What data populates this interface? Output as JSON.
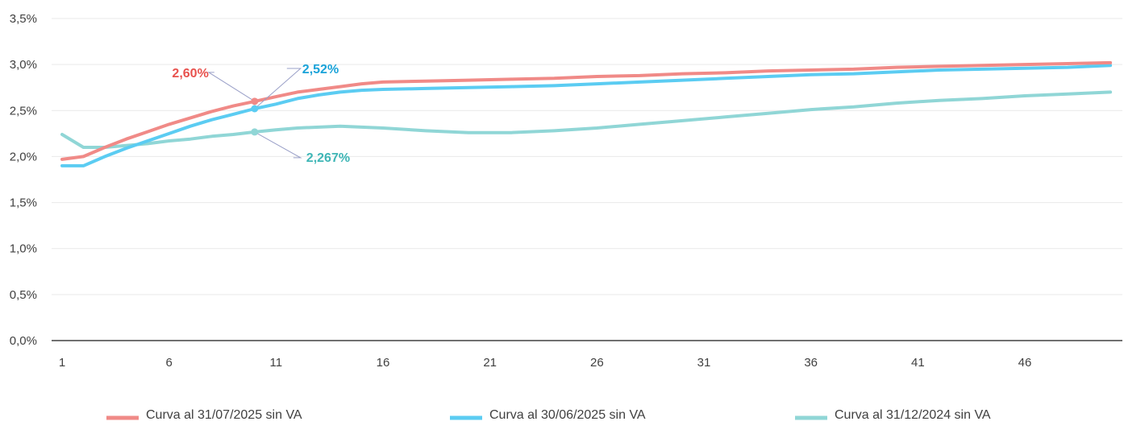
{
  "chart_data": {
    "type": "line",
    "title": "",
    "xlabel": "",
    "ylabel": "",
    "ylim": [
      0,
      3.5
    ],
    "yticks": [
      "0,0%",
      "0,5%",
      "1,0%",
      "1,5%",
      "2,0%",
      "2,5%",
      "3,0%",
      "3,5%"
    ],
    "ytick_values": [
      0,
      0.5,
      1.0,
      1.5,
      2.0,
      2.5,
      3.0,
      3.5
    ],
    "xlim": [
      1,
      50
    ],
    "xticks": [
      "1",
      "6",
      "11",
      "16",
      "21",
      "26",
      "31",
      "36",
      "41",
      "46"
    ],
    "xtick_values": [
      1,
      6,
      11,
      16,
      21,
      26,
      31,
      36,
      41,
      46
    ],
    "grid": true,
    "legend_position": "bottom",
    "series": [
      {
        "name": "Curva al 31/07/2025 sin VA",
        "color": "#F08A87",
        "x": [
          1,
          2,
          3,
          4,
          5,
          6,
          7,
          8,
          9,
          10,
          11,
          12,
          13,
          14,
          15,
          16,
          18,
          20,
          22,
          24,
          26,
          28,
          30,
          32,
          34,
          36,
          38,
          40,
          42,
          44,
          46,
          48,
          50
        ],
        "y": [
          1.97,
          2.0,
          2.1,
          2.19,
          2.27,
          2.35,
          2.42,
          2.49,
          2.55,
          2.6,
          2.65,
          2.7,
          2.73,
          2.76,
          2.79,
          2.81,
          2.82,
          2.83,
          2.84,
          2.85,
          2.87,
          2.88,
          2.9,
          2.91,
          2.93,
          2.94,
          2.95,
          2.97,
          2.98,
          2.99,
          3.0,
          3.01,
          3.02
        ]
      },
      {
        "name": "Curva al 30/06/2025 sin VA",
        "color": "#5BCCF2",
        "x": [
          1,
          2,
          3,
          4,
          5,
          6,
          7,
          8,
          9,
          10,
          11,
          12,
          13,
          14,
          15,
          16,
          18,
          20,
          22,
          24,
          26,
          28,
          30,
          32,
          34,
          36,
          38,
          40,
          42,
          44,
          46,
          48,
          50
        ],
        "y": [
          1.9,
          1.9,
          2.0,
          2.09,
          2.17,
          2.25,
          2.33,
          2.4,
          2.46,
          2.52,
          2.57,
          2.63,
          2.67,
          2.7,
          2.72,
          2.73,
          2.74,
          2.75,
          2.76,
          2.77,
          2.79,
          2.81,
          2.83,
          2.85,
          2.87,
          2.89,
          2.9,
          2.92,
          2.94,
          2.95,
          2.96,
          2.97,
          2.99
        ]
      },
      {
        "name": "Curva al 31/12/2024 sin VA",
        "color": "#90D6D6",
        "x": [
          1,
          2,
          3,
          4,
          5,
          6,
          7,
          8,
          9,
          10,
          11,
          12,
          14,
          16,
          18,
          20,
          22,
          24,
          26,
          28,
          30,
          32,
          34,
          36,
          38,
          40,
          42,
          44,
          46,
          48,
          50
        ],
        "y": [
          2.24,
          2.1,
          2.1,
          2.12,
          2.14,
          2.17,
          2.19,
          2.22,
          2.24,
          2.267,
          2.29,
          2.31,
          2.33,
          2.31,
          2.28,
          2.26,
          2.26,
          2.28,
          2.31,
          2.35,
          2.39,
          2.43,
          2.47,
          2.51,
          2.54,
          2.58,
          2.61,
          2.63,
          2.66,
          2.68,
          2.7
        ]
      }
    ],
    "annotations": [
      {
        "text": "2,60%",
        "x": 10,
        "y": 2.6,
        "color": "#E8524E",
        "series": 0
      },
      {
        "text": "2,52%",
        "x": 10,
        "y": 2.52,
        "color": "#1AA3D9",
        "series": 1
      },
      {
        "text": "2,267%",
        "x": 10,
        "y": 2.267,
        "color": "#3FB6B6",
        "series": 2
      }
    ]
  }
}
